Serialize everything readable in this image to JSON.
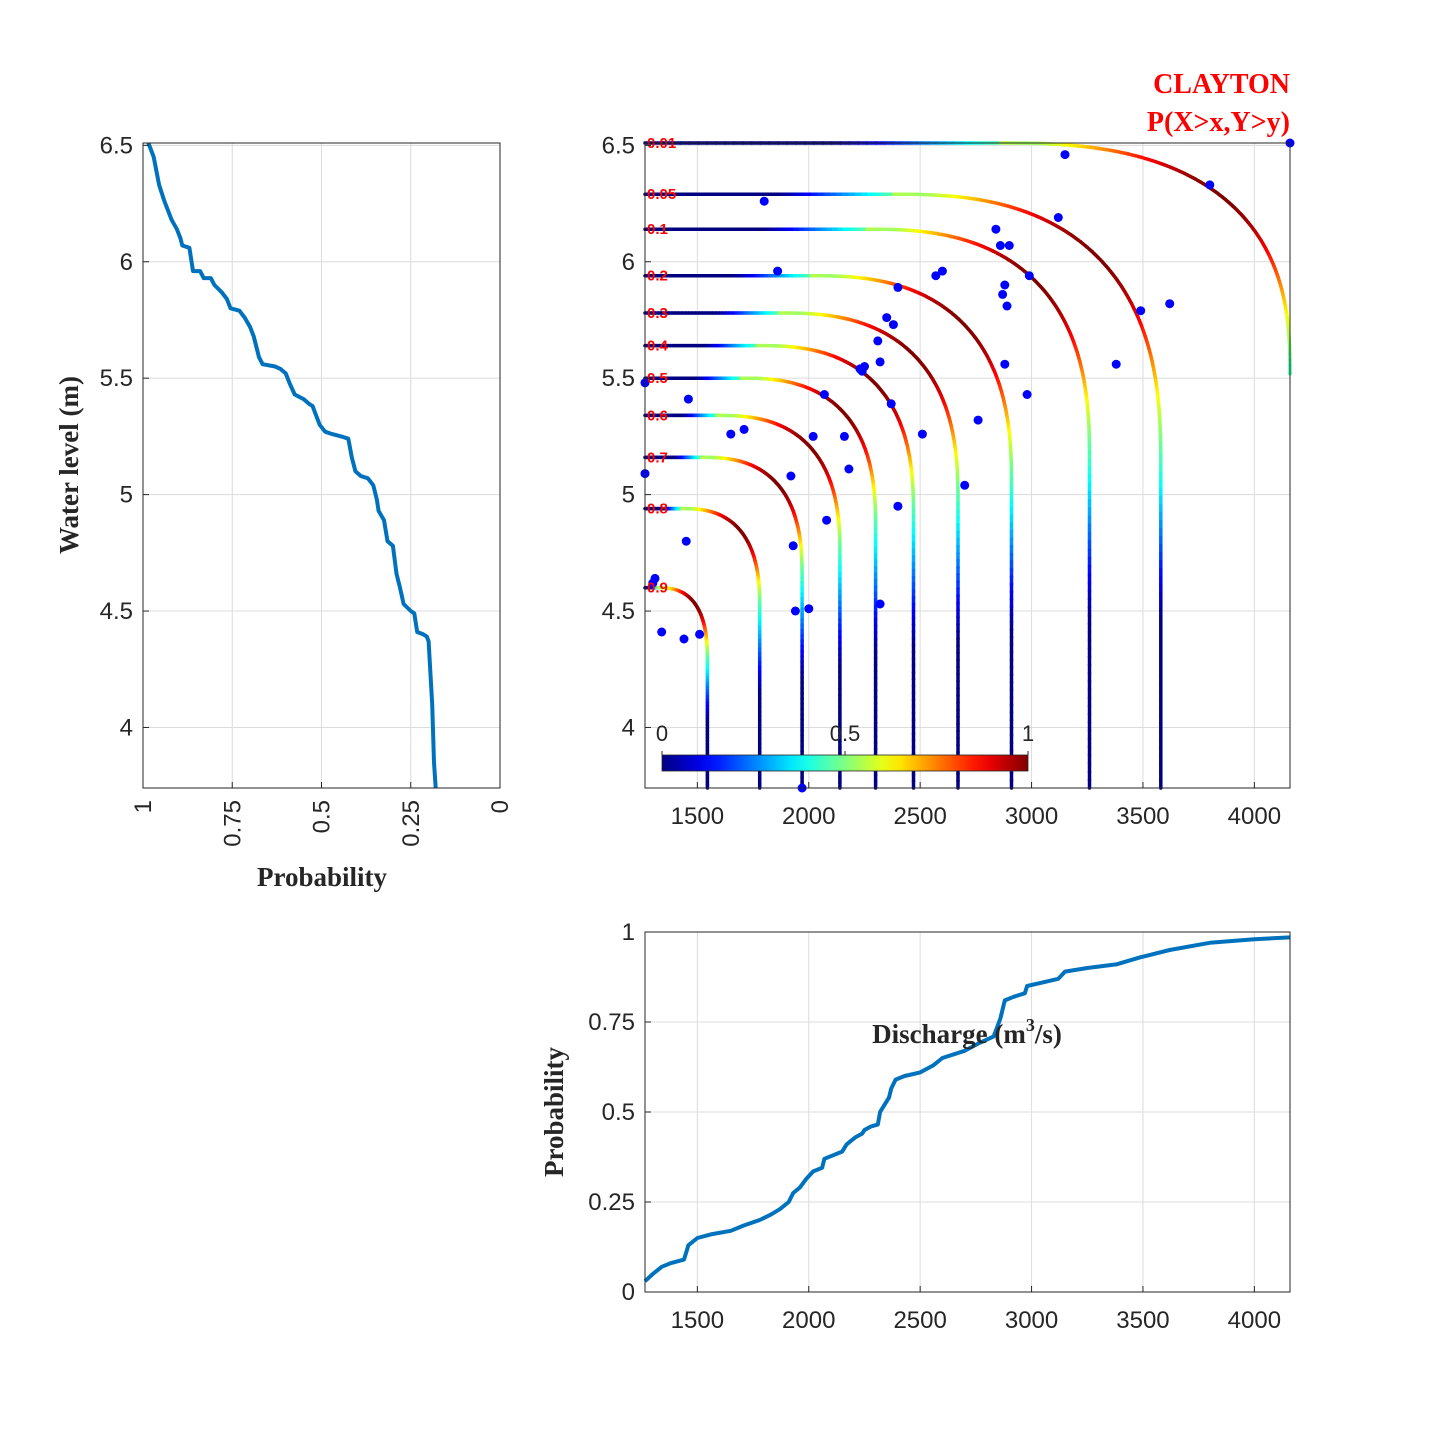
{
  "chart_data": [
    {
      "id": "marginal-water-level",
      "type": "line",
      "xlabel": "Probability",
      "ylabel": "Water level (m)",
      "xlim": [
        1,
        0
      ],
      "ylim": [
        3.74,
        6.51
      ],
      "xticks": [
        "1",
        "0.75",
        "0.5",
        "0.25",
        "0"
      ],
      "yticks": [
        "4",
        "4.5",
        "5",
        "5.5",
        "6",
        "6.5"
      ],
      "grid": true,
      "color": "#0072BD",
      "points": [
        [
          0.985,
          6.51
        ],
        [
          0.97,
          6.45
        ],
        [
          0.955,
          6.33
        ],
        [
          0.94,
          6.26
        ],
        [
          0.93,
          6.22
        ],
        [
          0.92,
          6.18
        ],
        [
          0.905,
          6.14
        ],
        [
          0.895,
          6.1
        ],
        [
          0.89,
          6.07
        ],
        [
          0.87,
          6.06
        ],
        [
          0.86,
          5.96
        ],
        [
          0.84,
          5.96
        ],
        [
          0.83,
          5.93
        ],
        [
          0.81,
          5.93
        ],
        [
          0.8,
          5.9
        ],
        [
          0.78,
          5.87
        ],
        [
          0.765,
          5.84
        ],
        [
          0.755,
          5.8
        ],
        [
          0.73,
          5.79
        ],
        [
          0.715,
          5.76
        ],
        [
          0.7,
          5.72
        ],
        [
          0.69,
          5.68
        ],
        [
          0.675,
          5.59
        ],
        [
          0.665,
          5.56
        ],
        [
          0.63,
          5.55
        ],
        [
          0.615,
          5.54
        ],
        [
          0.6,
          5.52
        ],
        [
          0.59,
          5.48
        ],
        [
          0.575,
          5.43
        ],
        [
          0.55,
          5.41
        ],
        [
          0.535,
          5.39
        ],
        [
          0.525,
          5.38
        ],
        [
          0.515,
          5.34
        ],
        [
          0.505,
          5.3
        ],
        [
          0.49,
          5.27
        ],
        [
          0.47,
          5.26
        ],
        [
          0.445,
          5.25
        ],
        [
          0.425,
          5.24
        ],
        [
          0.415,
          5.16
        ],
        [
          0.405,
          5.1
        ],
        [
          0.39,
          5.08
        ],
        [
          0.37,
          5.07
        ],
        [
          0.355,
          5.04
        ],
        [
          0.345,
          4.98
        ],
        [
          0.34,
          4.93
        ],
        [
          0.325,
          4.89
        ],
        [
          0.315,
          4.8
        ],
        [
          0.3,
          4.78
        ],
        [
          0.29,
          4.66
        ],
        [
          0.28,
          4.6
        ],
        [
          0.27,
          4.53
        ],
        [
          0.25,
          4.5
        ],
        [
          0.24,
          4.49
        ],
        [
          0.232,
          4.41
        ],
        [
          0.215,
          4.4
        ],
        [
          0.205,
          4.39
        ],
        [
          0.2,
          4.37
        ],
        [
          0.19,
          4.1
        ],
        [
          0.185,
          3.85
        ],
        [
          0.18,
          3.74
        ]
      ]
    },
    {
      "id": "copula-contours",
      "type": "line",
      "title": "CLAYTON",
      "subtitle": "P(X>x,Y>y)",
      "xlabel": "",
      "ylabel": "",
      "xlim": [
        1265,
        4160
      ],
      "ylim": [
        3.74,
        6.51
      ],
      "xticks": [
        "1500",
        "2000",
        "2500",
        "3000",
        "3500",
        "4000"
      ],
      "yticks": [
        "4",
        "4.5",
        "5",
        "5.5",
        "6",
        "6.5"
      ],
      "grid": true,
      "colorbar": {
        "min": 0,
        "max": 1,
        "ticks": [
          "0",
          "0.5",
          "1"
        ],
        "colormap": "jet",
        "placement": "bottom-left"
      },
      "contours": [
        {
          "label": "0.01",
          "y_level": 6.51,
          "x_vert": 4160,
          "y_end": 5.52,
          "corner": 1300
        },
        {
          "label": "0.05",
          "y_level": 6.29,
          "x_vert": 3580,
          "y_end": 3.74,
          "corner": 1200
        },
        {
          "label": "0.1",
          "y_level": 6.14,
          "x_vert": 3260,
          "y_end": 3.74,
          "corner": 1000
        },
        {
          "label": "0.2",
          "y_level": 5.94,
          "x_vert": 2910,
          "y_end": 3.74,
          "corner": 900
        },
        {
          "label": "0.3",
          "y_level": 5.78,
          "x_vert": 2670,
          "y_end": 3.74,
          "corner": 800
        },
        {
          "label": "0.4",
          "y_level": 5.64,
          "x_vert": 2470,
          "y_end": 3.74,
          "corner": 700
        },
        {
          "label": "0.5",
          "y_level": 5.5,
          "x_vert": 2300,
          "y_end": 3.74,
          "corner": 600
        },
        {
          "label": "0.6",
          "y_level": 5.34,
          "x_vert": 2140,
          "y_end": 3.74,
          "corner": 550
        },
        {
          "label": "0.7",
          "y_level": 5.16,
          "x_vert": 1970,
          "y_end": 3.74,
          "corner": 450
        },
        {
          "label": "0.8",
          "y_level": 4.94,
          "x_vert": 1780,
          "y_end": 3.74,
          "corner": 350
        },
        {
          "label": "0.9",
          "y_level": 4.6,
          "x_vert": 1545,
          "y_end": 3.74,
          "corner": 220
        }
      ],
      "scatter": {
        "color": "#0000ff",
        "points": [
          [
            1265,
            5.48
          ],
          [
            1265,
            5.09
          ],
          [
            1310,
            4.64
          ],
          [
            1300,
            4.62
          ],
          [
            1340,
            4.41
          ],
          [
            1440,
            4.38
          ],
          [
            1450,
            4.8
          ],
          [
            1460,
            5.41
          ],
          [
            1510,
            4.4
          ],
          [
            1650,
            5.26
          ],
          [
            1710,
            5.28
          ],
          [
            1800,
            6.26
          ],
          [
            1860,
            5.96
          ],
          [
            1920,
            5.08
          ],
          [
            1930,
            4.78
          ],
          [
            1940,
            4.5
          ],
          [
            1970,
            3.74
          ],
          [
            2000,
            4.51
          ],
          [
            2020,
            5.25
          ],
          [
            2070,
            5.43
          ],
          [
            2080,
            4.89
          ],
          [
            2160,
            5.25
          ],
          [
            2180,
            5.11
          ],
          [
            2230,
            5.54
          ],
          [
            2240,
            5.53
          ],
          [
            2250,
            5.55
          ],
          [
            2310,
            5.66
          ],
          [
            2320,
            4.53
          ],
          [
            2320,
            5.57
          ],
          [
            2350,
            5.76
          ],
          [
            2370,
            5.39
          ],
          [
            2380,
            5.73
          ],
          [
            2400,
            4.95
          ],
          [
            2400,
            5.89
          ],
          [
            2510,
            5.26
          ],
          [
            2570,
            5.94
          ],
          [
            2600,
            5.96
          ],
          [
            2700,
            5.04
          ],
          [
            2760,
            5.32
          ],
          [
            2840,
            6.14
          ],
          [
            2860,
            6.07
          ],
          [
            2870,
            5.86
          ],
          [
            2880,
            5.56
          ],
          [
            2880,
            5.9
          ],
          [
            2890,
            5.81
          ],
          [
            2900,
            6.07
          ],
          [
            2980,
            5.43
          ],
          [
            2990,
            5.94
          ],
          [
            3120,
            6.19
          ],
          [
            3150,
            6.46
          ],
          [
            3380,
            5.56
          ],
          [
            3490,
            5.79
          ],
          [
            3620,
            5.82
          ],
          [
            3800,
            6.33
          ],
          [
            4160,
            6.51
          ]
        ]
      }
    },
    {
      "id": "marginal-discharge",
      "type": "line",
      "xlabel": "Discharge (m³/s)",
      "xlabel_main": "Discharge (m",
      "xlabel_sup": "3",
      "xlabel_end": "/s)",
      "ylabel": "Probability",
      "xlim": [
        1265,
        4160
      ],
      "ylim": [
        0,
        1
      ],
      "xticks": [
        "1500",
        "2000",
        "2500",
        "3000",
        "3500",
        "4000"
      ],
      "yticks": [
        "0",
        "0.25",
        "0.5",
        "0.75",
        "1"
      ],
      "grid": true,
      "color": "#0072BD",
      "points": [
        [
          1265,
          0.03
        ],
        [
          1300,
          0.05
        ],
        [
          1340,
          0.07
        ],
        [
          1380,
          0.08
        ],
        [
          1440,
          0.09
        ],
        [
          1450,
          0.11
        ],
        [
          1460,
          0.13
        ],
        [
          1500,
          0.15
        ],
        [
          1560,
          0.16
        ],
        [
          1650,
          0.17
        ],
        [
          1710,
          0.185
        ],
        [
          1780,
          0.2
        ],
        [
          1830,
          0.215
        ],
        [
          1870,
          0.23
        ],
        [
          1910,
          0.25
        ],
        [
          1930,
          0.275
        ],
        [
          1960,
          0.29
        ],
        [
          1990,
          0.315
        ],
        [
          2020,
          0.335
        ],
        [
          2060,
          0.345
        ],
        [
          2070,
          0.37
        ],
        [
          2110,
          0.38
        ],
        [
          2150,
          0.39
        ],
        [
          2170,
          0.41
        ],
        [
          2210,
          0.43
        ],
        [
          2240,
          0.44
        ],
        [
          2250,
          0.45
        ],
        [
          2280,
          0.46
        ],
        [
          2310,
          0.465
        ],
        [
          2320,
          0.5
        ],
        [
          2340,
          0.52
        ],
        [
          2360,
          0.54
        ],
        [
          2370,
          0.565
        ],
        [
          2390,
          0.59
        ],
        [
          2430,
          0.6
        ],
        [
          2500,
          0.61
        ],
        [
          2560,
          0.63
        ],
        [
          2600,
          0.65
        ],
        [
          2700,
          0.67
        ],
        [
          2760,
          0.69
        ],
        [
          2830,
          0.71
        ],
        [
          2860,
          0.76
        ],
        [
          2880,
          0.81
        ],
        [
          2920,
          0.82
        ],
        [
          2970,
          0.83
        ],
        [
          2980,
          0.85
        ],
        [
          3050,
          0.86
        ],
        [
          3120,
          0.87
        ],
        [
          3150,
          0.89
        ],
        [
          3250,
          0.9
        ],
        [
          3380,
          0.91
        ],
        [
          3490,
          0.93
        ],
        [
          3620,
          0.95
        ],
        [
          3800,
          0.97
        ],
        [
          4000,
          0.98
        ],
        [
          4160,
          0.985
        ]
      ]
    }
  ]
}
